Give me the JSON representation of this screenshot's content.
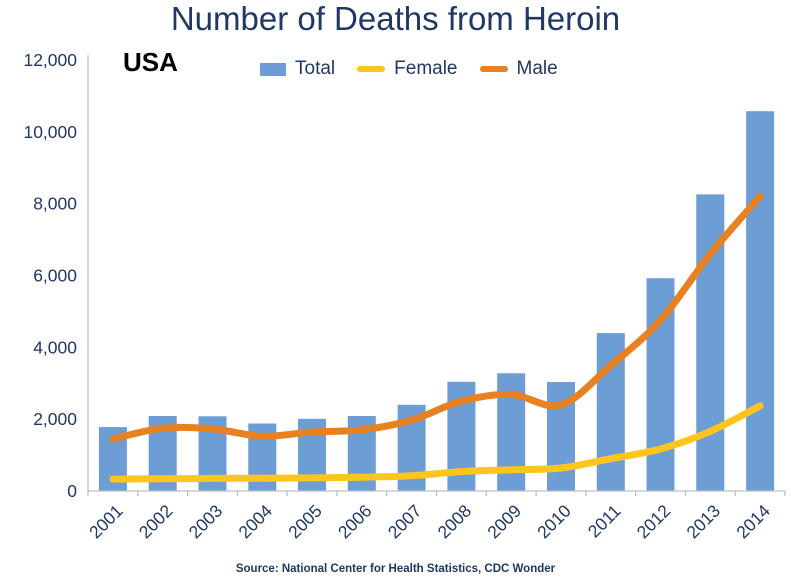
{
  "title": "Number of Deaths from Heroin",
  "region_label": "USA",
  "source_note": "Source: National Center for Health Statistics, CDC Wonder",
  "colors": {
    "total_bar": "#6C9DD4",
    "female_line": "#FDC51D",
    "male_line": "#E8811F",
    "text_navy": "#1F3864",
    "axis_line": "#BFBFBF",
    "background": "#FFFFFF"
  },
  "legend": {
    "items": [
      {
        "label": "Total",
        "series": "Total",
        "swatch_type": "bar"
      },
      {
        "label": "Female",
        "series": "Female",
        "swatch_type": "line"
      },
      {
        "label": "Male",
        "series": "Male",
        "swatch_type": "line"
      }
    ]
  },
  "chart_data": {
    "type": "bar+line",
    "categories": [
      "2001",
      "2002",
      "2003",
      "2004",
      "2005",
      "2006",
      "2007",
      "2008",
      "2009",
      "2010",
      "2011",
      "2012",
      "2013",
      "2014"
    ],
    "series": [
      {
        "name": "Total",
        "type": "bar",
        "color": "#6C9DD4",
        "values": [
          1779,
          2089,
          2080,
          1878,
          2009,
          2088,
          2399,
          3041,
          3278,
          3036,
          4397,
          5925,
          8257,
          10574
        ]
      },
      {
        "name": "Female",
        "type": "line",
        "color": "#FDC51D",
        "values": [
          330,
          340,
          350,
          355,
          365,
          385,
          425,
          540,
          590,
          640,
          900,
          1170,
          1660,
          2370
        ]
      },
      {
        "name": "Male",
        "type": "line",
        "color": "#E8811F",
        "values": [
          1449,
          1749,
          1730,
          1523,
          1644,
          1703,
          1974,
          2501,
          2688,
          2396,
          3497,
          4755,
          6597,
          8204
        ]
      }
    ],
    "title": "Number of Deaths from Heroin",
    "xlabel": "",
    "ylabel": "",
    "ylim": [
      0,
      12000
    ],
    "yticks": [
      {
        "label": "0",
        "value": 0
      },
      {
        "label": "2,000",
        "value": 2000
      },
      {
        "label": "4,000",
        "value": 4000
      },
      {
        "label": "6,000",
        "value": 6000
      },
      {
        "label": "8,000",
        "value": 8000
      },
      {
        "label": "10,000",
        "value": 10000
      },
      {
        "label": "12,000",
        "value": 12000
      }
    ],
    "grid": false,
    "legend_position": "top",
    "line_smoothing": true
  }
}
